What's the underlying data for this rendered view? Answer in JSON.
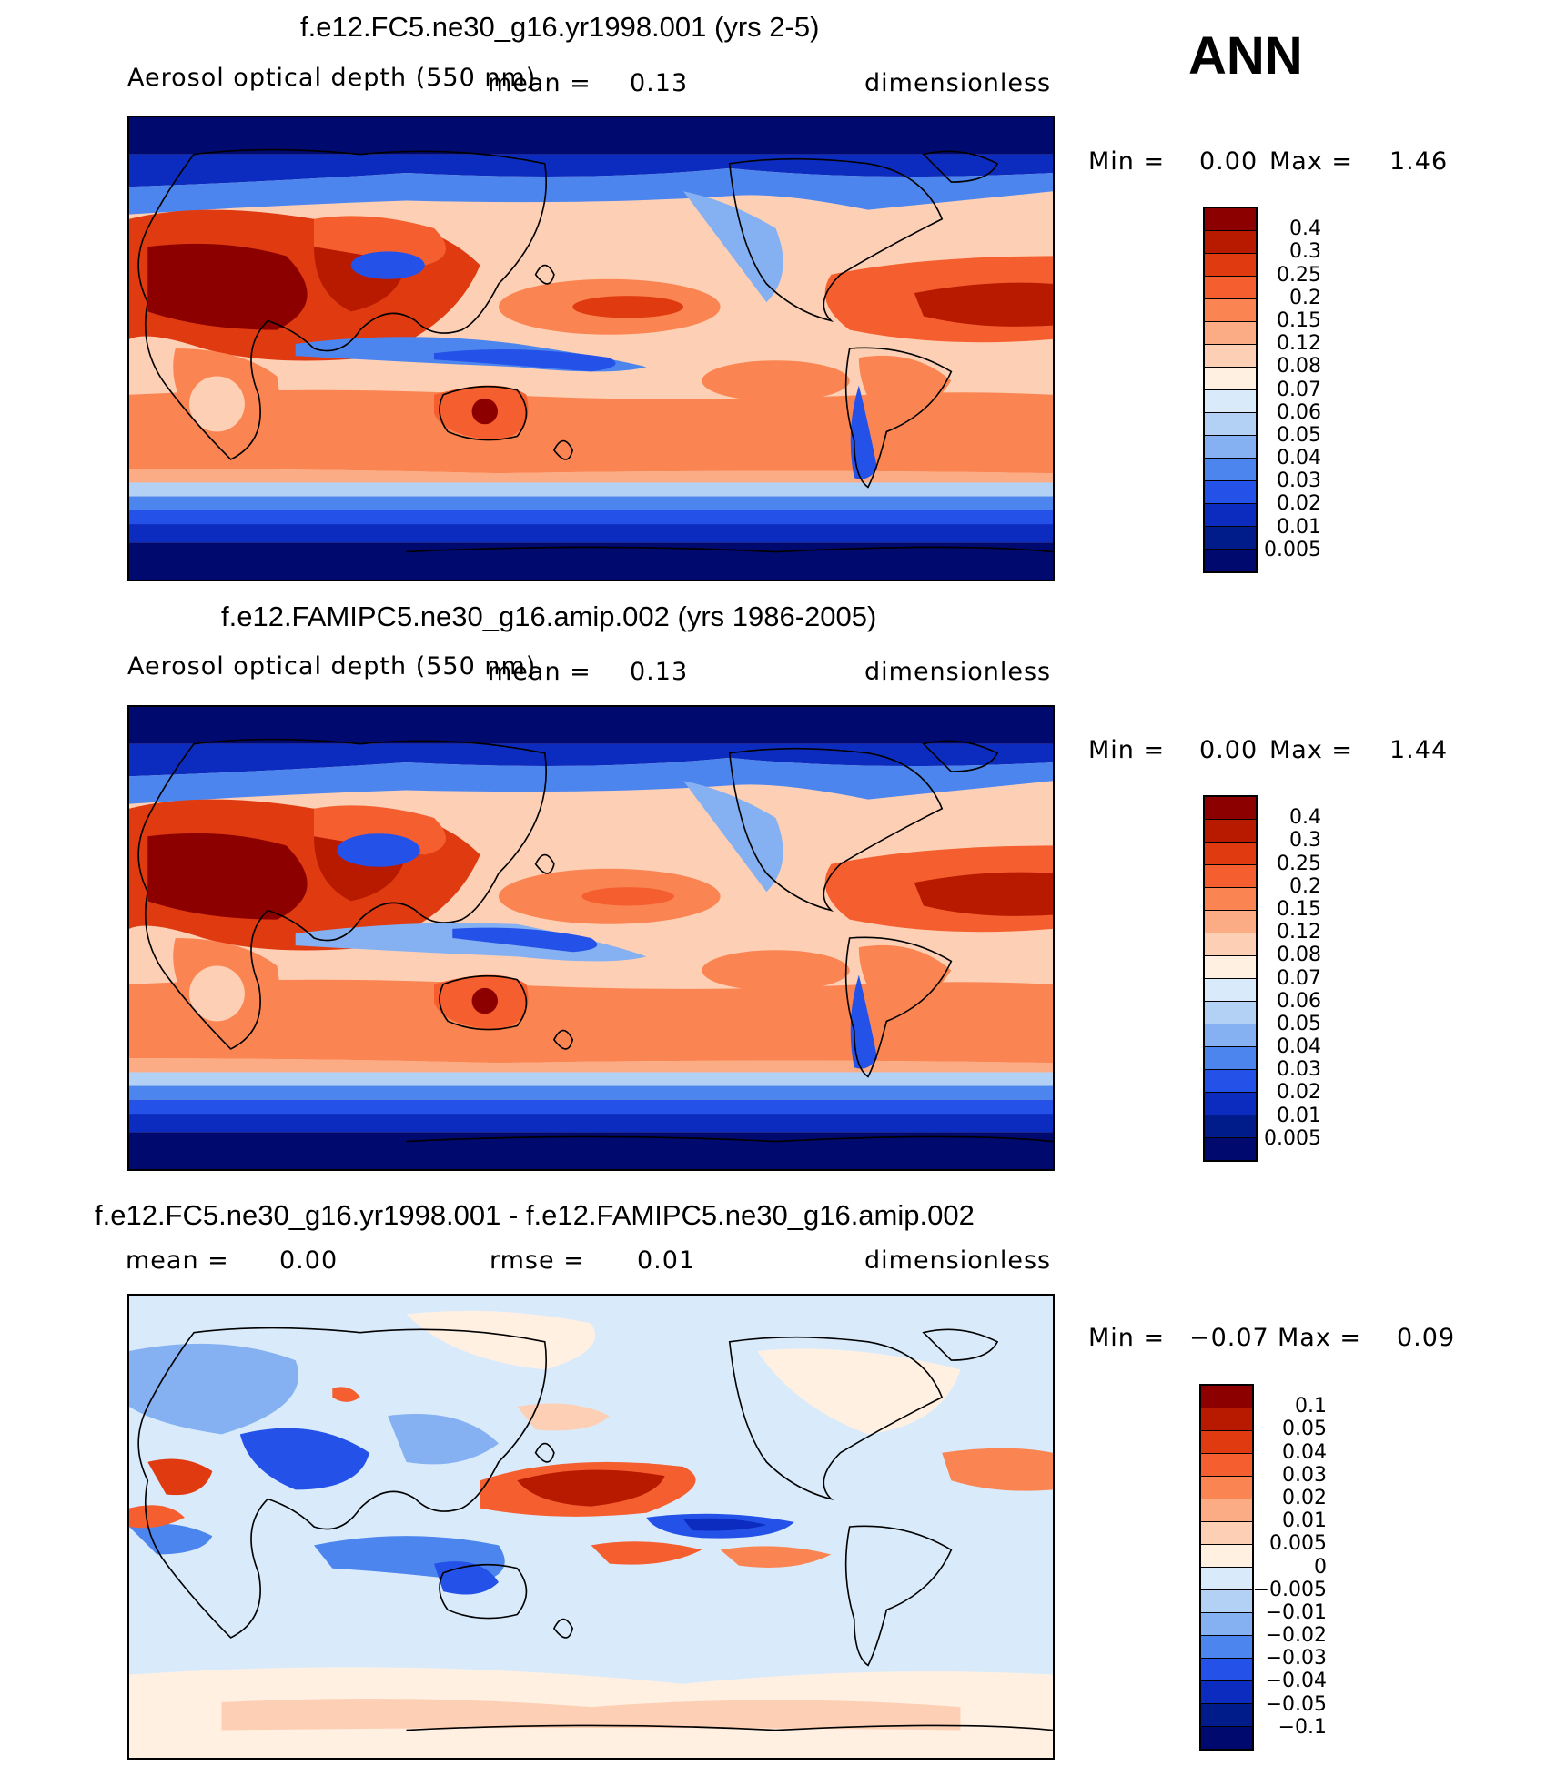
{
  "season": "ANN",
  "panels": [
    {
      "title": "f.e12.FC5.ne30_g16.yr1998.001 (yrs 2-5)",
      "variable": "Aerosol optical depth (550 nm)",
      "mean_label": "mean =",
      "mean_value": "0.13",
      "units": "dimensionless",
      "min_label": "Min =",
      "min_value": "0.00",
      "max_label": "Max =",
      "max_value": "1.46",
      "colorbar": [
        "0.4",
        "0.3",
        "0.25",
        "0.2",
        "0.15",
        "0.12",
        "0.08",
        "0.07",
        "0.06",
        "0.05",
        "0.04",
        "0.03",
        "0.02",
        "0.01",
        "0.005"
      ]
    },
    {
      "title": "f.e12.FAMIPC5.ne30_g16.amip.002 (yrs 1986-2005)",
      "variable": "Aerosol optical depth (550 nm)",
      "mean_label": "mean =",
      "mean_value": "0.13",
      "units": "dimensionless",
      "min_label": "Min =",
      "min_value": "0.00",
      "max_label": "Max =",
      "max_value": "1.44",
      "colorbar": [
        "0.4",
        "0.3",
        "0.25",
        "0.2",
        "0.15",
        "0.12",
        "0.08",
        "0.07",
        "0.06",
        "0.05",
        "0.04",
        "0.03",
        "0.02",
        "0.01",
        "0.005"
      ]
    },
    {
      "title": "f.e12.FC5.ne30_g16.yr1998.001 - f.e12.FAMIPC5.ne30_g16.amip.002",
      "mean_label": "mean =",
      "mean_value": "0.00",
      "rmse_label": "rmse =",
      "rmse_value": "0.01",
      "units": "dimensionless",
      "min_label": "Min =",
      "min_value": "−0.07",
      "max_label": "Max =",
      "max_value": "0.09",
      "colorbar": [
        "0.1",
        "0.05",
        "0.04",
        "0.03",
        "0.02",
        "0.01",
        "0.005",
        "0",
        "−0.005",
        "−0.01",
        "−0.02",
        "−0.03",
        "−0.04",
        "−0.05",
        "−0.1"
      ]
    }
  ],
  "colors": {
    "abs_scale": [
      "#8c0000",
      "#b81a00",
      "#e03a10",
      "#f55f30",
      "#fb8552",
      "#fcac84",
      "#fdd0b5",
      "#fff0e2",
      "#d9ebfb",
      "#b3d0f5",
      "#85b0f2",
      "#4d85ee",
      "#2452e8",
      "#0c2cc0",
      "#001b8a",
      "#000a6e"
    ],
    "diff_scale": [
      "#8c0000",
      "#b81a00",
      "#e03a10",
      "#f55f30",
      "#fb8552",
      "#fcac84",
      "#fdd0b5",
      "#fff0e2",
      "#d9ebfb",
      "#b3d0f5",
      "#85b0f2",
      "#4d85ee",
      "#2452e8",
      "#0c2cc0",
      "#001b8a",
      "#000a6e"
    ]
  }
}
